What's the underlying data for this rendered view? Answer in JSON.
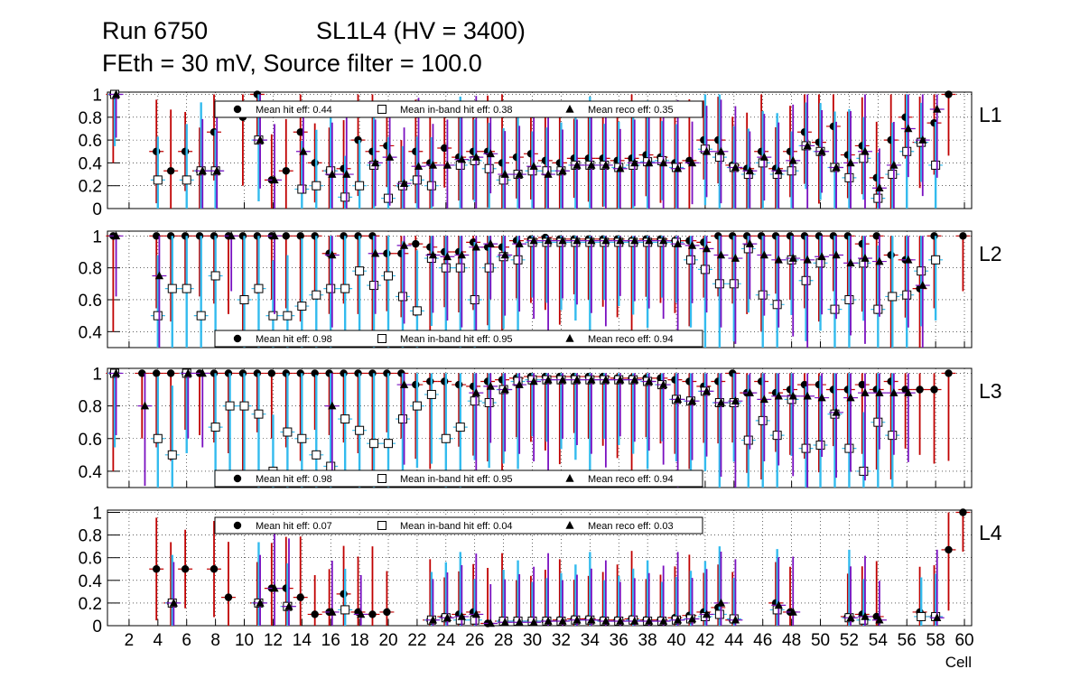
{
  "header": {
    "run": "Run 6750",
    "chamber": "SL1L4 (HV = 3400)",
    "settings": "FEth = 30 mV, Source filter = 100.0"
  },
  "colors": {
    "hit_err": "#c00000",
    "inband_err": "#33bbee",
    "reco_err": "#7a10c0",
    "marker": "#000000",
    "grid": "#000000"
  },
  "chart_data": [
    {
      "type": "scatter",
      "panel": "L1",
      "ylim": [
        0,
        1.02
      ],
      "yticks": [
        "0",
        "0.2",
        "0.4",
        "0.6",
        "0.8",
        "1"
      ],
      "legend": [
        "Mean hit  eff: 0.44",
        "Mean in-band hit eff: 0.38",
        "Mean reco eff: 0.35"
      ],
      "series": [
        {
          "name": "Mean hit  eff: 0.44",
          "values": [
            1,
            null,
            null,
            0.5,
            0.33,
            0.5,
            0.33,
            0.67,
            null,
            0.8,
            1,
            0.25,
            0.33,
            0.67,
            0.4,
            0.33,
            0.35,
            0.6,
            0.5,
            0.55,
            0.2,
            0.5,
            0.4,
            0.53,
            0.45,
            0.5,
            0.5,
            0.4,
            0.45,
            0.48,
            0.42,
            0.4,
            0.44,
            0.44,
            0.44,
            0.42,
            0.44,
            0.47,
            0.45,
            0.4,
            0.42,
            0.6,
            0.6,
            0.38,
            0.35,
            0.5,
            0.35,
            0.5,
            0.67,
            0.58,
            0.72,
            0.47,
            0.55,
            0.27,
            0.6,
            0.8,
            0.58,
            0.75,
            1,
            null
          ]
        },
        {
          "name": "Mean in-band hit eff: 0.38",
          "values": [
            1,
            null,
            null,
            0.25,
            null,
            0.25,
            0.33,
            0.33,
            null,
            null,
            0.6,
            null,
            null,
            0.17,
            0.2,
            0.33,
            0.1,
            0.2,
            0.38,
            0.09,
            0.2,
            0.25,
            0.2,
            null,
            0.38,
            0.42,
            0.35,
            0.25,
            0.3,
            0.33,
            0.33,
            0.33,
            0.38,
            0.38,
            0.38,
            0.36,
            0.38,
            0.41,
            0.42,
            0.36,
            null,
            0.52,
            0.45,
            0.36,
            0.3,
            0.4,
            0.3,
            0.33,
            0.55,
            0.5,
            0.36,
            0.27,
            0.44,
            0.09,
            0.3,
            0.5,
            0.58,
            0.38,
            null,
            null
          ]
        },
        {
          "name": "Mean reco eff: 0.35",
          "values": [
            1,
            null,
            null,
            null,
            null,
            null,
            0.33,
            0.33,
            null,
            null,
            0.6,
            0.25,
            null,
            0.5,
            null,
            0.3,
            0.3,
            null,
            0.4,
            0.45,
            0.22,
            0.37,
            0.38,
            0.38,
            0.43,
            0.45,
            0.48,
            0.3,
            0.3,
            0.37,
            0.3,
            0.33,
            0.38,
            0.38,
            0.38,
            0.35,
            0.4,
            0.4,
            0.4,
            0.35,
            0.4,
            0.5,
            0.5,
            0.36,
            0.33,
            0.45,
            0.33,
            0.42,
            0.55,
            0.5,
            0.36,
            0.4,
            0.5,
            0.18,
            0.38,
            0.7,
            0.6,
            0.87,
            null,
            null
          ]
        }
      ]
    },
    {
      "type": "scatter",
      "panel": "L2",
      "ylim": [
        0.3,
        1.03
      ],
      "yticks": [
        "0.4",
        "0.6",
        "0.8",
        "1"
      ],
      "legend": [
        "Mean hit  eff: 0.98",
        "Mean in-band hit eff: 0.95",
        "Mean reco eff: 0.94"
      ],
      "series": [
        {
          "name": "Mean hit  eff: 0.98",
          "values": [
            1,
            null,
            null,
            1,
            1,
            1,
            1,
            1,
            1,
            1,
            1,
            1,
            1,
            1,
            1,
            0.89,
            1,
            1,
            1,
            0.89,
            0.89,
            0.95,
            0.93,
            0.9,
            0.9,
            0.96,
            0.93,
            0.93,
            0.97,
            0.98,
            0.99,
            0.98,
            0.98,
            0.98,
            0.98,
            0.98,
            0.97,
            0.98,
            0.98,
            0.97,
            0.97,
            0.96,
            1,
            1,
            1,
            1,
            1,
            1,
            1,
            1,
            1,
            1,
            0.95,
            1,
            0.88,
            0.85,
            0.67,
            1,
            null,
            1
          ]
        },
        {
          "name": "Mean in-band hit eff: 0.95",
          "values": [
            null,
            null,
            null,
            0.5,
            0.67,
            0.67,
            0.5,
            0.75,
            null,
            0.6,
            0.67,
            0.5,
            0.5,
            0.56,
            0.63,
            0.67,
            0.67,
            0.78,
            0.69,
            0.75,
            0.62,
            0.53,
            0.86,
            0.8,
            0.8,
            0.6,
            0.8,
            0.87,
            0.85,
            0.96,
            0.96,
            0.96,
            0.96,
            0.96,
            0.96,
            0.96,
            0.96,
            0.96,
            0.96,
            0.96,
            0.85,
            0.79,
            0.7,
            0.7,
            0.92,
            0.63,
            0.57,
            0.85,
            0.72,
            0.83,
            0.54,
            0.6,
            0.83,
            0.54,
            0.62,
            0.63,
            0.78,
            0.85,
            null,
            null
          ]
        },
        {
          "name": "Mean reco eff: 0.94",
          "values": [
            1,
            null,
            null,
            0.75,
            null,
            null,
            null,
            null,
            1,
            null,
            null,
            1,
            null,
            null,
            null,
            0.88,
            null,
            null,
            0.89,
            null,
            0.94,
            null,
            0.88,
            0.87,
            0.88,
            0.93,
            0.95,
            0.88,
            0.95,
            0.97,
            0.97,
            0.97,
            0.97,
            0.97,
            0.97,
            0.97,
            0.97,
            0.97,
            0.97,
            0.95,
            0.94,
            0.92,
            0.88,
            0.86,
            0.95,
            0.88,
            0.85,
            0.86,
            0.85,
            0.87,
            0.88,
            0.83,
            0.86,
            0.84,
            null,
            0.85,
            0.69,
            null,
            null,
            null
          ]
        }
      ]
    },
    {
      "type": "scatter",
      "panel": "L3",
      "ylim": [
        0.3,
        1.03
      ],
      "yticks": [
        "0.4",
        "0.6",
        "0.8",
        "1"
      ],
      "legend": [
        "Mean hit  eff: 0.98",
        "Mean in-band hit eff: 0.95",
        "Mean reco eff: 0.94"
      ],
      "series": [
        {
          "name": "Mean hit  eff: 0.98",
          "values": [
            1,
            null,
            1,
            1,
            1,
            1,
            1,
            1,
            1,
            1,
            1,
            1,
            1,
            1,
            1,
            1,
            1,
            1,
            1,
            1,
            1,
            0.93,
            0.95,
            0.95,
            0.93,
            0.92,
            0.95,
            0.96,
            0.97,
            0.98,
            0.98,
            0.98,
            0.98,
            0.98,
            0.98,
            0.97,
            0.97,
            0.97,
            0.97,
            0.96,
            0.95,
            0.92,
            0.95,
            1,
            0.88,
            0.95,
            0.88,
            0.9,
            0.93,
            0.93,
            0.9,
            0.9,
            0.93,
            0.9,
            0.95,
            0.9,
            0.9,
            0.9,
            1,
            null
          ]
        },
        {
          "name": "Mean in-band hit eff: 0.95",
          "values": [
            1,
            null,
            null,
            0.6,
            0.5,
            1,
            null,
            0.67,
            0.8,
            0.8,
            0.75,
            0.4,
            0.64,
            0.6,
            0.5,
            0.43,
            0.72,
            0.65,
            0.57,
            0.57,
            0.72,
            0.8,
            0.87,
            0.6,
            0.67,
            0.83,
            0.82,
            0.9,
            0.95,
            0.96,
            0.96,
            0.96,
            0.96,
            0.96,
            0.96,
            0.96,
            0.96,
            0.95,
            0.93,
            0.84,
            0.83,
            0.89,
            0.82,
            0.82,
            0.59,
            0.71,
            0.62,
            0.84,
            0.54,
            0.56,
            0.75,
            0.54,
            0.4,
            0.7,
            0.62,
            null,
            null,
            null,
            null,
            null
          ]
        },
        {
          "name": "Mean reco eff: 0.94",
          "values": [
            1,
            null,
            0.8,
            null,
            null,
            1,
            1,
            null,
            null,
            null,
            null,
            null,
            null,
            null,
            null,
            0.8,
            null,
            null,
            null,
            null,
            0.93,
            null,
            null,
            null,
            null,
            0.88,
            0.92,
            0.9,
            0.93,
            0.95,
            0.96,
            0.96,
            0.96,
            0.96,
            0.96,
            0.96,
            0.96,
            0.95,
            0.93,
            0.84,
            0.83,
            0.89,
            0.82,
            0.83,
            0.88,
            0.84,
            0.86,
            0.86,
            0.86,
            0.85,
            0.76,
            0.85,
            0.88,
            0.88,
            0.88,
            0.88,
            null,
            null,
            null,
            null
          ]
        }
      ]
    },
    {
      "type": "scatter",
      "panel": "L4",
      "ylim": [
        0,
        1.02
      ],
      "yticks": [
        "0",
        "0.2",
        "0.4",
        "0.6",
        "0.8",
        "1"
      ],
      "xlabel": "Cell",
      "xticks": [
        "2",
        "4",
        "6",
        "8",
        "10",
        "12",
        "14",
        "16",
        "18",
        "20",
        "22",
        "24",
        "26",
        "28",
        "30",
        "32",
        "34",
        "36",
        "38",
        "40",
        "42",
        "44",
        "46",
        "48",
        "50",
        "52",
        "54",
        "56",
        "58",
        "60"
      ],
      "legend": [
        "Mean hit  eff: 0.07",
        "Mean in-band hit eff: 0.04",
        "Mean reco eff: 0.03"
      ],
      "series": [
        {
          "name": "Mean hit  eff: 0.07",
          "values": [
            null,
            null,
            null,
            0.5,
            0.2,
            0.5,
            null,
            0.5,
            0.25,
            null,
            0.2,
            0.33,
            0.33,
            0.25,
            0.1,
            0.12,
            0.28,
            0.12,
            0.1,
            0.12,
            null,
            null,
            0.05,
            0.08,
            0.1,
            0.12,
            0.02,
            0.04,
            0.04,
            0.04,
            0.04,
            0.05,
            0.06,
            0.06,
            0.05,
            0.05,
            0.06,
            0.05,
            0.05,
            0.07,
            0.09,
            0.12,
            0.16,
            0.05,
            null,
            null,
            0.2,
            0.12,
            null,
            null,
            null,
            0.08,
            0.1,
            0.08,
            null,
            null,
            0.12,
            0.08,
            0.67,
            1
          ]
        },
        {
          "name": "Mean in-band hit eff: 0.04",
          "values": [
            null,
            null,
            null,
            null,
            0.2,
            null,
            null,
            null,
            null,
            null,
            0.2,
            null,
            0.17,
            null,
            null,
            null,
            0.14,
            null,
            null,
            null,
            null,
            null,
            0.05,
            0.07,
            0.05,
            0.05,
            null,
            0.04,
            0.04,
            0.04,
            0.04,
            0.04,
            0.05,
            0.05,
            0.04,
            0.04,
            0.05,
            0.04,
            0.04,
            0.05,
            0.06,
            0.08,
            0.1,
            0.06,
            null,
            null,
            0.14,
            null,
            null,
            null,
            null,
            0.07,
            0.05,
            null,
            null,
            null,
            0.08,
            0.08,
            null,
            null
          ]
        },
        {
          "name": "Mean reco eff: 0.03",
          "values": [
            null,
            null,
            null,
            null,
            0.2,
            null,
            null,
            null,
            null,
            null,
            0.2,
            0.33,
            0.17,
            null,
            null,
            0.12,
            null,
            0.1,
            null,
            null,
            null,
            null,
            0.05,
            0.07,
            0.08,
            0.1,
            0.02,
            0.03,
            0.03,
            0.03,
            0.04,
            0.04,
            0.05,
            0.05,
            0.04,
            0.04,
            0.04,
            0.04,
            0.04,
            0.05,
            0.06,
            0.1,
            0.2,
            0.05,
            null,
            null,
            0.18,
            0.12,
            null,
            null,
            null,
            0.07,
            0.08,
            0.05,
            null,
            null,
            null,
            0.07,
            null,
            null
          ]
        }
      ]
    }
  ]
}
